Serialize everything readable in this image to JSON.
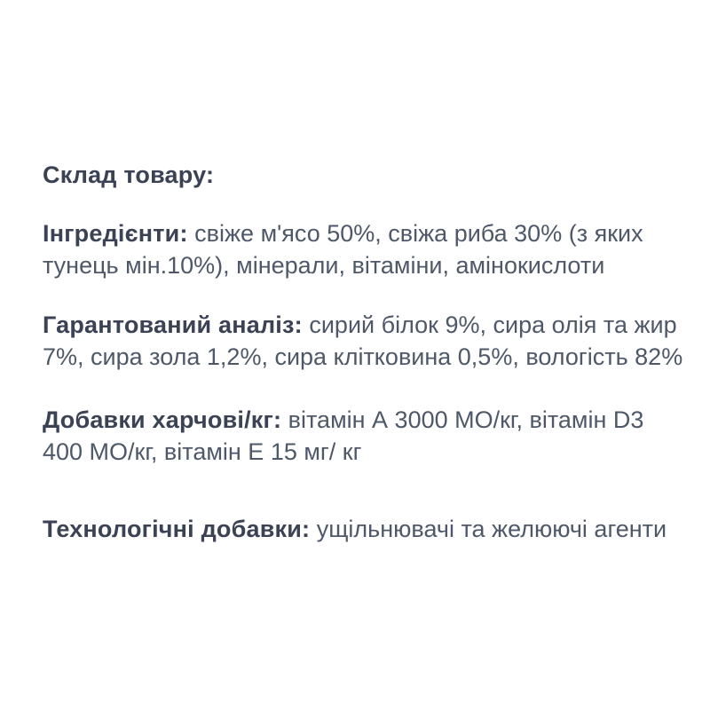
{
  "page": {
    "background_color": "#ffffff",
    "heading_color": "#3a4254",
    "body_text_color": "#4e5868"
  },
  "composition": {
    "title": "Склад товару:",
    "sections": [
      {
        "label": "Інгредієнти:",
        "line1": "свіже м'ясо 50%, свіжа риба 30% (з яких",
        "line2": "тунець мін.10%), мінерали, вітаміни, амінокислоти"
      },
      {
        "label": "Гарантований аналіз:",
        "line1": "сирий білок 9%, сира олія та жир",
        "line2": "7%, сира зола 1,2%, сира клітковина 0,5%, вологість 82%"
      },
      {
        "label": "Добавки харчові/кг:",
        "line1": "вітамін А 3000 МО/кг, вітамін D3",
        "line2": "400 МО/кг, вітамін Е 15 мг/ кг"
      },
      {
        "label": "Технологічні добавки:",
        "line1": "ущільнювачі та желюючі агенти",
        "line2": ""
      }
    ]
  }
}
